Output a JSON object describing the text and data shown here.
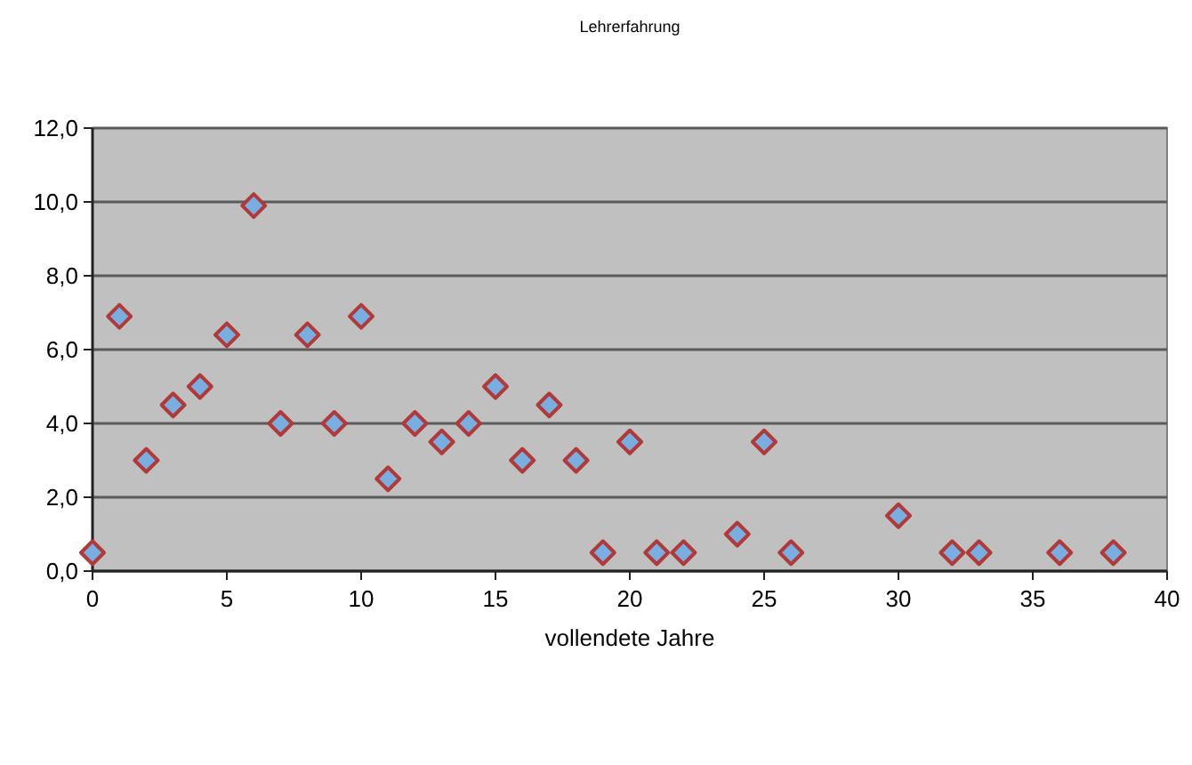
{
  "chart_data": {
    "type": "scatter",
    "title": "Lehrerfahrung",
    "xlabel": "vollendete Jahre",
    "x": [
      0,
      1,
      2,
      3,
      4,
      5,
      6,
      7,
      8,
      9,
      10,
      11,
      12,
      13,
      14,
      15,
      16,
      17,
      18,
      19,
      20,
      21,
      22,
      24,
      25,
      26,
      30,
      32,
      33,
      36,
      38
    ],
    "values": [
      0.5,
      6.9,
      3.0,
      4.5,
      5.0,
      6.4,
      9.9,
      4.0,
      6.4,
      4.0,
      6.9,
      2.5,
      4.0,
      3.5,
      4.0,
      5.0,
      3.0,
      4.5,
      3.0,
      0.5,
      3.5,
      0.5,
      0.5,
      1.0,
      3.5,
      0.5,
      1.5,
      0.5,
      0.5,
      0.5,
      0.5
    ],
    "color": "#7aaee0",
    "marker": "diamond",
    "grid": "y",
    "xlim": [
      0,
      40
    ],
    "xticks": [
      0,
      5,
      10,
      15,
      20,
      25,
      30,
      35,
      40
    ],
    "ylim": [
      0,
      12
    ],
    "yticks": [
      {
        "value": 0,
        "label": "0,0"
      },
      {
        "value": 2,
        "label": "2,0"
      },
      {
        "value": 4,
        "label": "4,0"
      },
      {
        "value": 6,
        "label": "6,0"
      },
      {
        "value": 8,
        "label": "8,0"
      },
      {
        "value": 10,
        "label": "10,0"
      },
      {
        "value": 12,
        "label": "12,0"
      }
    ]
  }
}
